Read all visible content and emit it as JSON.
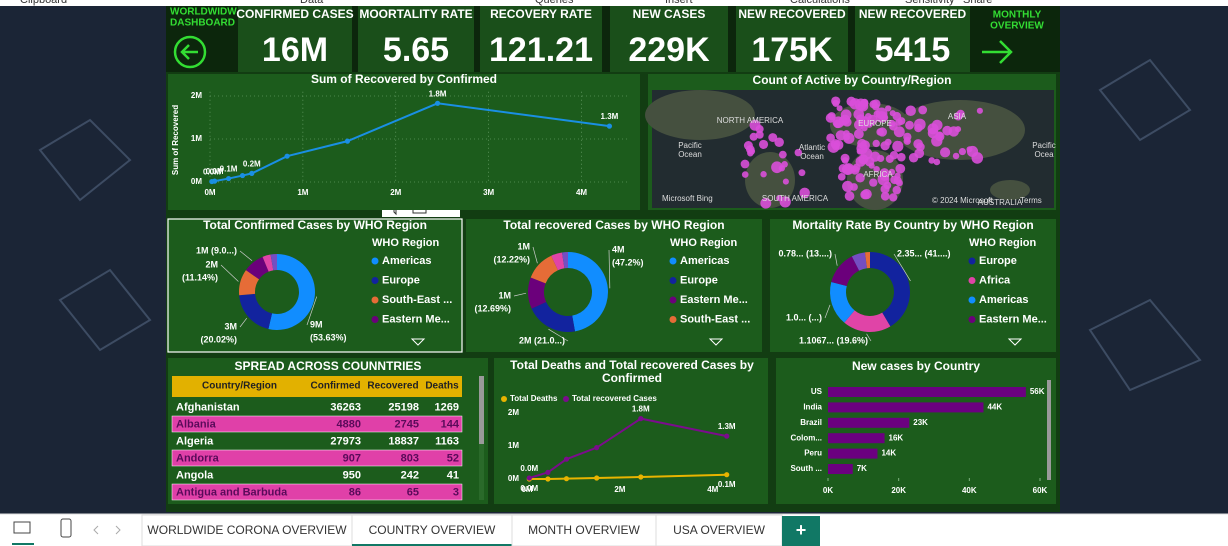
{
  "ribbon": [
    "Clipboard",
    "Data",
    "Queries",
    "Insert",
    "Calculations",
    "Sensitivity",
    "Share"
  ],
  "header": {
    "title_lines": [
      "WORLDWIDW",
      "DASHBOARD"
    ],
    "nav_lines": [
      "MONTHLY",
      "OVERVIEW"
    ]
  },
  "kpis": [
    {
      "label": "CONFIRMED CASES",
      "value": "16M"
    },
    {
      "label": "MOORTALITY RATE",
      "value": "5.65"
    },
    {
      "label": "RECOVERY RATE",
      "value": "121.21"
    },
    {
      "label": "NEW CASES",
      "value": "229K"
    },
    {
      "label": "NEW RECOVERED",
      "value": "175K"
    },
    {
      "label": "NEW RECOVERED",
      "value": "5415"
    }
  ],
  "line_chart": {
    "type": "line",
    "title": "Sum of Recovered by Confirmed",
    "y_label": "Sum of Recovered",
    "x": [
      0.02,
      0.05,
      0.2,
      0.35,
      0.45,
      0.83,
      1.48,
      2.45,
      4.3
    ],
    "values": [
      0.01,
      0.02,
      0.08,
      0.15,
      0.2,
      0.6,
      0.95,
      1.83,
      1.3
    ],
    "value_labels": [
      "0.0M",
      "0.0M",
      "0.1M",
      null,
      "0.2M",
      null,
      null,
      "1.8M",
      "1.3M"
    ],
    "color": "#1a8fe3",
    "grid": true,
    "xlim": [
      0,
      4.5
    ],
    "xticks": [
      {
        "value": 0,
        "label": "0M"
      },
      {
        "value": 1,
        "label": "1M"
      },
      {
        "value": 2,
        "label": "2M"
      },
      {
        "value": 3,
        "label": "3M"
      },
      {
        "value": 4,
        "label": "4M"
      }
    ],
    "ylim": [
      0,
      2.1
    ],
    "yticks": [
      {
        "value": 0,
        "label": "0M"
      },
      {
        "value": 1,
        "label": "1M"
      },
      {
        "value": 2,
        "label": "2M"
      }
    ]
  },
  "map": {
    "title": "Count of Active by Country/Region",
    "labels": [
      "NORTH AMERICA",
      "EUROPE",
      "ASIA",
      "Pacific",
      "Ocean",
      "Atlantic",
      "Ocean",
      "AFRICA",
      "SOUTH AMERICA",
      "AUSTRALIA",
      "Pacific",
      "Ocea"
    ],
    "attribution": "© 2024 Microsoft",
    "logo": "Microsoft Bing",
    "terms": "Terms"
  },
  "donuts": [
    {
      "type": "pie",
      "title": "Total Confirmed Cases by WHO Region",
      "legend_title": "WHO Region",
      "categories": [
        "Americas",
        "Europe",
        "South-East ...",
        "Eastern Me...",
        null,
        null
      ],
      "values": [
        53.63,
        20.02,
        11.14,
        9.0,
        3.5,
        2.71
      ],
      "value_labels": [
        [
          "9M",
          "(53.63%)"
        ],
        [
          "3M",
          "(20.02%)"
        ],
        [
          "2M",
          "(11.14%)"
        ],
        [
          "1M (9.0...)"
        ],
        null,
        null
      ],
      "colors": [
        "#118dff",
        "#12239e",
        "#e66c37",
        "#6b007b",
        "#e044a7",
        "#744ec2"
      ]
    },
    {
      "type": "pie",
      "title": "Total recovered Cases by WHO Region",
      "legend_title": "WHO Region",
      "categories": [
        "Americas",
        "Europe",
        "Eastern Me...",
        "South-East ...",
        null,
        null
      ],
      "values": [
        47.2,
        21.0,
        12.69,
        12.22,
        4.5,
        2.39
      ],
      "value_labels": [
        [
          "4M",
          "(47.2%)"
        ],
        [
          "2M (21.0...)"
        ],
        [
          "1M",
          "(12.69%)"
        ],
        [
          "1M",
          "(12.22%)"
        ],
        null,
        null
      ],
      "colors": [
        "#118dff",
        "#12239e",
        "#6b007b",
        "#e66c37",
        "#e044a7",
        "#744ec2"
      ]
    },
    {
      "type": "pie",
      "title": "Mortality Rate By Country by WHO Region",
      "legend_title": "WHO Region",
      "categories": [
        "Europe",
        "Africa",
        "Americas",
        "Eastern Me...",
        null,
        null
      ],
      "values": [
        41.5,
        19.6,
        17.9,
        13.5,
        5.5,
        2.0
      ],
      "value_labels": [
        [
          "2.35... (41....)"
        ],
        [
          "1.1067... (19.6%)"
        ],
        [
          "1.0... (...)"
        ],
        [
          "0.78... (13....)"
        ],
        null,
        null
      ],
      "colors": [
        "#12239e",
        "#e044a7",
        "#118dff",
        "#6b007b",
        "#744ec2",
        "#e66c37"
      ]
    }
  ],
  "table": {
    "title": "SPREAD ACROSS COUNNTRIES",
    "columns": [
      "Country/Region",
      "Confirmed",
      "Recovered",
      "Deaths"
    ],
    "rows": [
      [
        "Afghanistan",
        36263,
        25198,
        1269
      ],
      [
        "Albania",
        4880,
        2745,
        144
      ],
      [
        "Algeria",
        27973,
        18837,
        1163
      ],
      [
        "Andorra",
        907,
        803,
        52
      ],
      [
        "Angola",
        950,
        242,
        41
      ],
      [
        "Antigua and Barbuda",
        86,
        65,
        3
      ]
    ]
  },
  "deaths_recovered": {
    "type": "line",
    "title_lines": [
      "Total Deaths and Total recovered Cases by",
      "Confirmed"
    ],
    "grid": false,
    "x": [
      0.05,
      0.45,
      0.85,
      1.5,
      2.45,
      4.3
    ],
    "series": [
      {
        "name": "Total Deaths",
        "color": "#e8b400",
        "values": [
          0.0,
          0.0,
          0.01,
          0.03,
          0.06,
          0.13
        ],
        "value_labels": [
          "0.0M",
          null,
          null,
          null,
          null,
          "0.1M"
        ]
      },
      {
        "name": "Total recovered Cases",
        "color": "#7b0c8c",
        "values": [
          0.03,
          0.2,
          0.6,
          0.95,
          1.83,
          1.3
        ],
        "value_labels": [
          "0.0M",
          null,
          null,
          null,
          "1.8M",
          "1.3M"
        ]
      }
    ],
    "xlim": [
      0,
      4.5
    ],
    "xticks": [
      {
        "value": 0,
        "label": "0M"
      },
      {
        "value": 2,
        "label": "2M"
      },
      {
        "value": 4,
        "label": "4M"
      }
    ],
    "ylim": [
      0,
      2.1
    ],
    "yticks": [
      {
        "value": 0,
        "label": "0M"
      },
      {
        "value": 1,
        "label": "1M"
      },
      {
        "value": 2,
        "label": "2M"
      }
    ]
  },
  "new_cases": {
    "type": "bar",
    "title": "New cases by Country",
    "color": "#6b0080",
    "categories": [
      "US",
      "India",
      "Brazil",
      "Colom...",
      "Peru",
      "South ..."
    ],
    "values": [
      56,
      44,
      23,
      16,
      14,
      7
    ],
    "value_labels": [
      "56K",
      "44K",
      "23K",
      "16K",
      "14K",
      "7K"
    ],
    "xlim": [
      0,
      60
    ],
    "xticks": [
      {
        "value": 0,
        "label": "0K"
      },
      {
        "value": 20,
        "label": "20K"
      },
      {
        "value": 40,
        "label": "40K"
      },
      {
        "value": 60,
        "label": "60K"
      }
    ]
  },
  "tabs": [
    "WORLDWIDE CORONA OVERVIEW",
    "COUNTRY OVERVIEW",
    "MONTH OVERVIEW",
    "USA OVERVIEW"
  ],
  "add_tab": "+"
}
